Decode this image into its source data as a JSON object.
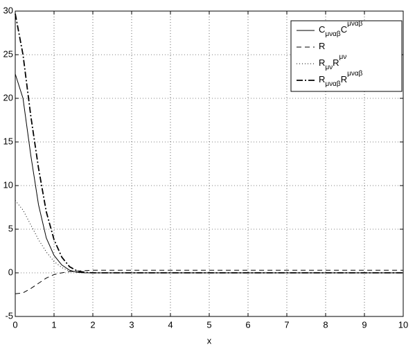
{
  "chart_data": {
    "type": "line",
    "xlabel": "x",
    "x": [
      0,
      0.2,
      0.4,
      0.6,
      0.8,
      1,
      1.2,
      1.4,
      1.6,
      1.8,
      2,
      3,
      4,
      5,
      6,
      7,
      8,
      9,
      10
    ],
    "series": [
      {
        "name": "C_{μναβ}C^{μναβ}",
        "color": "#000000",
        "linestyle": "solid",
        "values": [
          22.8,
          20,
          13.5,
          7.8,
          4,
          2,
          0.9,
          0.3,
          0.05,
          0,
          0,
          0,
          0,
          0,
          0,
          0,
          0,
          0,
          0
        ]
      },
      {
        "name": "R",
        "color": "#000000",
        "linestyle": "dashed",
        "values": [
          -2.4,
          -2.3,
          -1.8,
          -1.2,
          -0.6,
          -0.2,
          0,
          0.15,
          0.2,
          0.25,
          0.3,
          0.3,
          0.3,
          0.3,
          0.3,
          0.3,
          0.3,
          0.3,
          0.3
        ]
      },
      {
        "name": "R_{μν}R^{μν}",
        "color": "#000000",
        "linestyle": "dotted",
        "values": [
          8.3,
          7.2,
          5.5,
          3.8,
          2.4,
          1.3,
          0.6,
          0.2,
          0.05,
          0,
          0,
          0,
          0,
          0,
          0,
          0,
          0,
          0,
          0
        ]
      },
      {
        "name": "R_{μναβ}R^{μναβ}",
        "color": "#000000",
        "linestyle": "dashdot",
        "values": [
          29.7,
          25,
          18,
          12,
          7,
          3.8,
          1.8,
          0.7,
          0.2,
          0.05,
          0,
          0,
          0,
          0,
          0,
          0,
          0,
          0,
          0
        ]
      }
    ],
    "xlim": [
      0,
      10
    ],
    "xticks": [
      0,
      1,
      2,
      3,
      4,
      5,
      6,
      7,
      8,
      9,
      10
    ],
    "ylim": [
      -5,
      30
    ],
    "yticks": [
      -5,
      0,
      5,
      10,
      15,
      20,
      25,
      30
    ],
    "grid": true,
    "legend": "upper right"
  }
}
